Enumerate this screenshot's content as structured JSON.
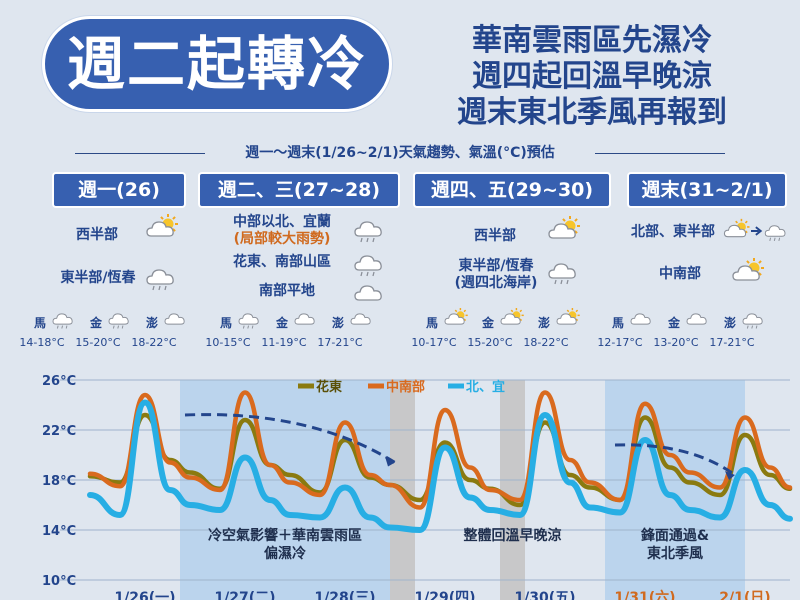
{
  "header": {
    "title": "週二起轉冷",
    "subtitle_lines": [
      "華南雲雨區先濕冷",
      "週四起回溫早晚涼",
      "週末東北季風再報到"
    ],
    "forecast_heading": "週一～週末(1/26~2/1)天氣趨勢、氣溫(°C)預估"
  },
  "periods": [
    {
      "label": "週一(26)",
      "regions": [
        {
          "text": "西半部",
          "icon": "sun-cloud-icon"
        },
        {
          "text": "東半部/恆春",
          "icon": "cloud-rain-icon"
        }
      ],
      "stations": [
        {
          "name": "馬",
          "range": "14-18°C",
          "icon": "cloud-rain-icon"
        },
        {
          "name": "金",
          "range": "15-20°C",
          "icon": "cloud-rain-icon"
        },
        {
          "name": "澎",
          "range": "18-22°C",
          "icon": "cloud-icon"
        }
      ]
    },
    {
      "label": "週二、三(27~28)",
      "regions": [
        {
          "text": "中部以北、宜蘭",
          "warn": "(局部較大雨勢)",
          "icon": "cloud-rain-icon"
        },
        {
          "text": "花東、南部山區",
          "icon": "cloud-rain-icon"
        },
        {
          "text": "南部平地",
          "icon": "cloud-icon"
        }
      ],
      "stations": [
        {
          "name": "馬",
          "range": "10-15°C",
          "icon": "cloud-rain-icon"
        },
        {
          "name": "金",
          "range": "11-19°C",
          "icon": "cloud-icon"
        },
        {
          "name": "澎",
          "range": "17-21°C",
          "icon": "cloud-icon"
        }
      ]
    },
    {
      "label": "週四、五(29~30)",
      "regions": [
        {
          "text": "西半部",
          "icon": "sun-cloud-icon"
        },
        {
          "text": "東半部/恆春",
          "warn": "(週四北海岸)",
          "icon": "cloud-rain-icon"
        }
      ],
      "stations": [
        {
          "name": "馬",
          "range": "10-17°C",
          "icon": "sun-cloud-icon"
        },
        {
          "name": "金",
          "range": "15-20°C",
          "icon": "sun-cloud-icon"
        },
        {
          "name": "澎",
          "range": "18-22°C",
          "icon": "sun-cloud-icon"
        }
      ]
    },
    {
      "label": "週末(31~2/1)",
      "regions": [
        {
          "text": "北部、東半部",
          "icon": "sun-cloud-to-rain-icon"
        },
        {
          "text": "中南部",
          "icon": "sun-cloud-icon"
        }
      ],
      "stations": [
        {
          "name": "馬",
          "range": "12-17°C",
          "icon": "cloud-icon"
        },
        {
          "name": "金",
          "range": "13-20°C",
          "icon": "cloud-icon"
        },
        {
          "name": "澎",
          "range": "17-21°C",
          "icon": "cloud-rain-icon"
        }
      ]
    }
  ],
  "chart_data": {
    "type": "line",
    "ylim": [
      10,
      26
    ],
    "yticks": [
      "26°C",
      "22°C",
      "18°C",
      "14°C",
      "10°C"
    ],
    "ytick_values": [
      26,
      22,
      18,
      14,
      10
    ],
    "x_labels": [
      "1/26(一)",
      "1/27(二)",
      "1/28(三)",
      "1/29(四)",
      "1/30(五)",
      "1/31(六)",
      "2/1(日)"
    ],
    "x_label_colors": [
      "#23458c",
      "#23458c",
      "#23458c",
      "#23458c",
      "#23458c",
      "#d06a1f",
      "#d06a1f"
    ],
    "x_range": [
      0,
      7
    ],
    "legend_position": "top",
    "series": [
      {
        "name": "花東",
        "color": "#8a7a10",
        "x": [
          0,
          0.3,
          0.55,
          0.8,
          1.0,
          1.3,
          1.55,
          1.8,
          2.0,
          2.3,
          2.55,
          2.8,
          3.0,
          3.3,
          3.55,
          3.8,
          4.0,
          4.3,
          4.55,
          4.8,
          5.0,
          5.3,
          5.55,
          5.8,
          6.0,
          6.3,
          6.55,
          6.8,
          7.0
        ],
        "y": [
          18.3,
          17.8,
          23.2,
          19.6,
          18.6,
          17.3,
          22.8,
          19.2,
          18.4,
          17.0,
          21.2,
          18.2,
          17.6,
          16.4,
          21.0,
          18.0,
          17.3,
          16.0,
          22.6,
          18.4,
          17.4,
          16.4,
          23.0,
          19.0,
          17.8,
          16.8,
          21.6,
          18.4,
          17.3
        ]
      },
      {
        "name": "中南部",
        "color": "#d96a1e",
        "x": [
          0,
          0.3,
          0.55,
          0.8,
          1.0,
          1.3,
          1.55,
          1.8,
          2.0,
          2.3,
          2.55,
          2.8,
          3.0,
          3.3,
          3.55,
          3.8,
          4.0,
          4.3,
          4.55,
          4.8,
          5.0,
          5.3,
          5.55,
          5.8,
          6.0,
          6.3,
          6.55,
          6.8,
          7.0
        ],
        "y": [
          18.5,
          17.5,
          24.8,
          19.4,
          18.2,
          17.2,
          25.0,
          19.2,
          17.8,
          16.8,
          22.6,
          18.4,
          17.6,
          15.8,
          23.6,
          19.0,
          17.2,
          16.4,
          25.0,
          19.6,
          17.8,
          16.4,
          24.1,
          20.0,
          18.6,
          17.4,
          23.0,
          19.0,
          17.4
        ]
      },
      {
        "name": "北、宜",
        "color": "#27aee4",
        "x": [
          0,
          0.3,
          0.55,
          0.8,
          1.0,
          1.3,
          1.55,
          1.8,
          2.0,
          2.3,
          2.55,
          2.8,
          3.0,
          3.3,
          3.55,
          3.8,
          4.0,
          4.3,
          4.55,
          4.8,
          5.0,
          5.3,
          5.55,
          5.8,
          6.0,
          6.3,
          6.55,
          6.8,
          7.0
        ],
        "y": [
          16.8,
          15.2,
          24.2,
          17.2,
          16.0,
          15.6,
          19.8,
          16.4,
          15.2,
          15.0,
          17.4,
          15.0,
          14.2,
          14.0,
          20.6,
          16.6,
          15.6,
          15.2,
          23.2,
          17.8,
          15.8,
          15.4,
          21.2,
          16.8,
          15.6,
          15.0,
          18.8,
          16.0,
          14.9
        ]
      }
    ],
    "shaded_periods": [
      {
        "x0": 0.9,
        "x1": 3.0,
        "color": "#b8d3ec",
        "label_lines": [
          "冷空氣影響＋華南雲雨區",
          "偏濕冷"
        ]
      },
      {
        "x0": 3.0,
        "x1": 3.25,
        "color": "#c6c6c6",
        "label_lines": []
      },
      {
        "x0": 4.1,
        "x1": 4.35,
        "color": "#c6c6c6",
        "label_lines": [
          "整體回溫早晚涼"
        ]
      },
      {
        "x0": 5.15,
        "x1": 6.55,
        "color": "#b8d3ec",
        "label_lines": [
          "鋒面通過&",
          "東北季風"
        ]
      }
    ]
  }
}
